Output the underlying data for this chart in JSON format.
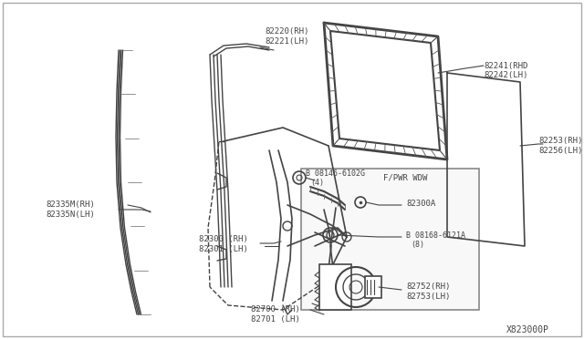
{
  "background_color": "#ffffff",
  "line_color": "#444444",
  "gray_color": "#888888",
  "light_fill": "#f5f5f5",
  "label_82220": "82220(RH)\n82221(LH)",
  "label_82241": "82241(RHD\n82242(LH)",
  "label_82253": "82253(RH)\n82256(LH)",
  "label_82335": "82335M(RH)\n82335N(LH)",
  "label_82300": "82300 (RH)\n82301 (LH)",
  "label_08146": "B 08146-6102G\n    (4)",
  "label_FPWR": "F/PWR WDW",
  "label_82300A": "82300A",
  "label_08168": "B 08168-6121A\n    (8)",
  "label_82752": "82752(RH)\n82753(LH)",
  "label_82700": "82700 (RH)\n82701 (LH)",
  "diagram_id": "X823000P"
}
